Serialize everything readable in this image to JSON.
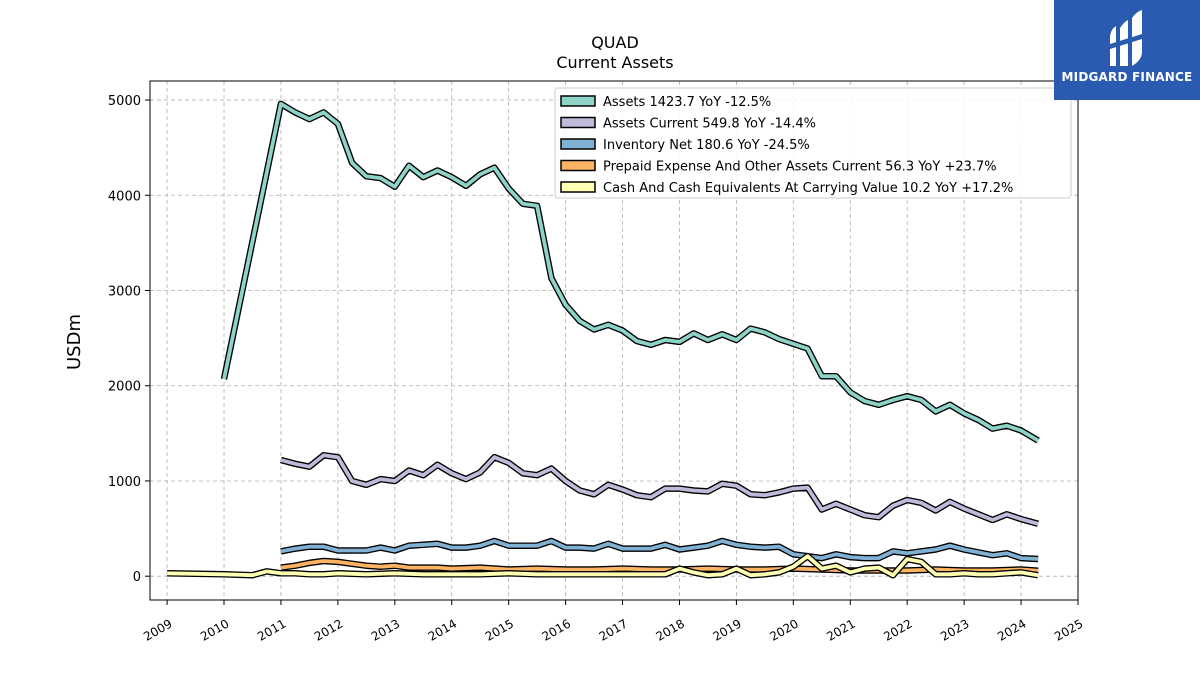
{
  "chart_data": {
    "type": "line",
    "title": "QUAD",
    "subtitle": "Current  Assets",
    "ylabel": "USDm",
    "xlim": [
      2008.7,
      2025.0
    ],
    "ylim": [
      -250,
      5200
    ],
    "x_ticks": [
      "2009",
      "2010",
      "2011",
      "2012",
      "2013",
      "2014",
      "2015",
      "2016",
      "2017",
      "2018",
      "2019",
      "2020",
      "2021",
      "2022",
      "2023",
      "2024",
      "2025"
    ],
    "y_ticks": [
      "0",
      "1000",
      "2000",
      "3000",
      "4000",
      "5000"
    ],
    "y_tick_values": [
      0,
      1000,
      2000,
      3000,
      4000,
      5000
    ],
    "grid": true,
    "legend_position": "top-right",
    "series": [
      {
        "name": "Assets  1423.7 YoY -12.5%",
        "color": "#8dd3c7",
        "x": [
          2010.0,
          2011.0,
          2011.25,
          2011.5,
          2011.75,
          2012.0,
          2012.25,
          2012.5,
          2012.75,
          2013.0,
          2013.25,
          2013.5,
          2013.75,
          2014.0,
          2014.25,
          2014.5,
          2014.75,
          2015.0,
          2015.25,
          2015.5,
          2015.75,
          2016.0,
          2016.25,
          2016.5,
          2016.75,
          2017.0,
          2017.25,
          2017.5,
          2017.75,
          2018.0,
          2018.25,
          2018.5,
          2018.75,
          2019.0,
          2019.25,
          2019.5,
          2019.75,
          2020.0,
          2020.25,
          2020.5,
          2020.75,
          2021.0,
          2021.25,
          2021.5,
          2021.75,
          2022.0,
          2022.25,
          2022.5,
          2022.75,
          2023.0,
          2023.25,
          2023.5,
          2023.75,
          2024.0,
          2024.3
        ],
        "y": [
          2070,
          4960,
          4870,
          4800,
          4870,
          4750,
          4340,
          4200,
          4180,
          4090,
          4310,
          4190,
          4260,
          4190,
          4100,
          4220,
          4290,
          4070,
          3910,
          3890,
          3130,
          2850,
          2680,
          2590,
          2640,
          2580,
          2470,
          2430,
          2480,
          2460,
          2550,
          2480,
          2540,
          2480,
          2600,
          2560,
          2490,
          2440,
          2390,
          2100,
          2100,
          1930,
          1840,
          1800,
          1850,
          1890,
          1850,
          1730,
          1800,
          1710,
          1640,
          1550,
          1580,
          1530,
          1423.7
        ]
      },
      {
        "name": "Assets Current  549.8 YoY -14.4%",
        "color": "#bebada",
        "x": [
          2011.0,
          2011.25,
          2011.5,
          2011.75,
          2012.0,
          2012.25,
          2012.5,
          2012.75,
          2013.0,
          2013.25,
          2013.5,
          2013.75,
          2014.0,
          2014.25,
          2014.5,
          2014.75,
          2015.0,
          2015.25,
          2015.5,
          2015.75,
          2016.0,
          2016.25,
          2016.5,
          2016.75,
          2017.0,
          2017.25,
          2017.5,
          2017.75,
          2018.0,
          2018.25,
          2018.5,
          2018.75,
          2019.0,
          2019.25,
          2019.5,
          2019.75,
          2020.0,
          2020.25,
          2020.5,
          2020.75,
          2021.0,
          2021.25,
          2021.5,
          2021.75,
          2022.0,
          2022.25,
          2022.5,
          2022.75,
          2023.0,
          2023.25,
          2023.5,
          2023.75,
          2024.0,
          2024.3
        ],
        "y": [
          1220,
          1180,
          1150,
          1270,
          1250,
          1000,
          960,
          1020,
          1000,
          1110,
          1060,
          1170,
          1080,
          1020,
          1090,
          1250,
          1190,
          1080,
          1060,
          1130,
          1000,
          900,
          860,
          960,
          910,
          850,
          830,
          920,
          920,
          900,
          890,
          970,
          950,
          860,
          850,
          880,
          920,
          930,
          700,
          760,
          700,
          640,
          620,
          740,
          800,
          770,
          690,
          780,
          710,
          650,
          590,
          650,
          600,
          549.8
        ]
      },
      {
        "name": "Inventory Net  180.6 YoY -24.5%",
        "color": "#80b1d3",
        "x": [
          2011.0,
          2011.25,
          2011.5,
          2011.75,
          2012.0,
          2012.25,
          2012.5,
          2012.75,
          2013.0,
          2013.25,
          2013.5,
          2013.75,
          2014.0,
          2014.25,
          2014.5,
          2014.75,
          2015.0,
          2015.25,
          2015.5,
          2015.75,
          2016.0,
          2016.25,
          2016.5,
          2016.75,
          2017.0,
          2017.25,
          2017.5,
          2017.75,
          2018.0,
          2018.25,
          2018.5,
          2018.75,
          2019.0,
          2019.25,
          2019.5,
          2019.75,
          2020.0,
          2020.25,
          2020.5,
          2020.75,
          2021.0,
          2021.25,
          2021.5,
          2021.75,
          2022.0,
          2022.25,
          2022.5,
          2022.75,
          2023.0,
          2023.25,
          2023.5,
          2023.75,
          2024.0,
          2024.3
        ],
        "y": [
          260,
          290,
          310,
          310,
          270,
          270,
          270,
          300,
          270,
          320,
          330,
          340,
          300,
          300,
          320,
          370,
          320,
          320,
          320,
          370,
          300,
          300,
          290,
          340,
          290,
          290,
          290,
          330,
          280,
          300,
          320,
          370,
          330,
          310,
          300,
          310,
          230,
          210,
          190,
          230,
          200,
          190,
          190,
          260,
          240,
          260,
          280,
          320,
          280,
          250,
          220,
          240,
          190,
          180.6
        ]
      },
      {
        "name": "Prepaid Expense And Other Assets Current  56.3 YoY +23.7%",
        "color": "#fdb462",
        "x": [
          2011.0,
          2011.25,
          2011.5,
          2011.75,
          2012.0,
          2012.25,
          2012.5,
          2012.75,
          2013.0,
          2013.25,
          2013.5,
          2013.75,
          2014.0,
          2014.5,
          2015.0,
          2015.5,
          2016.0,
          2016.5,
          2017.0,
          2017.5,
          2018.0,
          2018.5,
          2019.0,
          2019.5,
          2020.0,
          2020.5,
          2021.0,
          2021.5,
          2022.0,
          2022.5,
          2023.0,
          2023.5,
          2024.0,
          2024.3
        ],
        "y": [
          90,
          110,
          140,
          160,
          150,
          130,
          110,
          100,
          110,
          90,
          90,
          90,
          80,
          90,
          70,
          80,
          70,
          70,
          80,
          70,
          70,
          80,
          70,
          70,
          80,
          70,
          60,
          60,
          60,
          70,
          60,
          60,
          70,
          56.3
        ]
      },
      {
        "name": "Cash And Cash Equivalents At Carrying Value  10.2 YoY +17.2%",
        "color": "#ffffb3",
        "x": [
          2009.0,
          2010.0,
          2010.5,
          2010.75,
          2011.0,
          2011.25,
          2011.5,
          2011.75,
          2012.0,
          2012.5,
          2013.0,
          2013.5,
          2014.0,
          2014.5,
          2015.0,
          2015.5,
          2016.0,
          2016.5,
          2017.0,
          2017.5,
          2017.75,
          2018.0,
          2018.25,
          2018.5,
          2018.75,
          2019.0,
          2019.25,
          2019.5,
          2019.75,
          2020.0,
          2020.25,
          2020.5,
          2020.75,
          2021.0,
          2021.25,
          2021.5,
          2021.75,
          2022.0,
          2022.25,
          2022.5,
          2022.75,
          2023.0,
          2023.25,
          2023.5,
          2023.75,
          2024.0,
          2024.3
        ],
        "y": [
          30,
          20,
          10,
          50,
          30,
          30,
          20,
          20,
          30,
          20,
          30,
          20,
          20,
          20,
          30,
          20,
          20,
          20,
          20,
          20,
          20,
          80,
          40,
          10,
          20,
          80,
          10,
          20,
          40,
          100,
          210,
          80,
          110,
          40,
          80,
          90,
          10,
          180,
          150,
          20,
          20,
          30,
          20,
          20,
          30,
          40,
          10.2
        ]
      }
    ]
  },
  "logo": {
    "text": "MIDGARD FINANCE",
    "bg_color": "#2b5bb0"
  }
}
